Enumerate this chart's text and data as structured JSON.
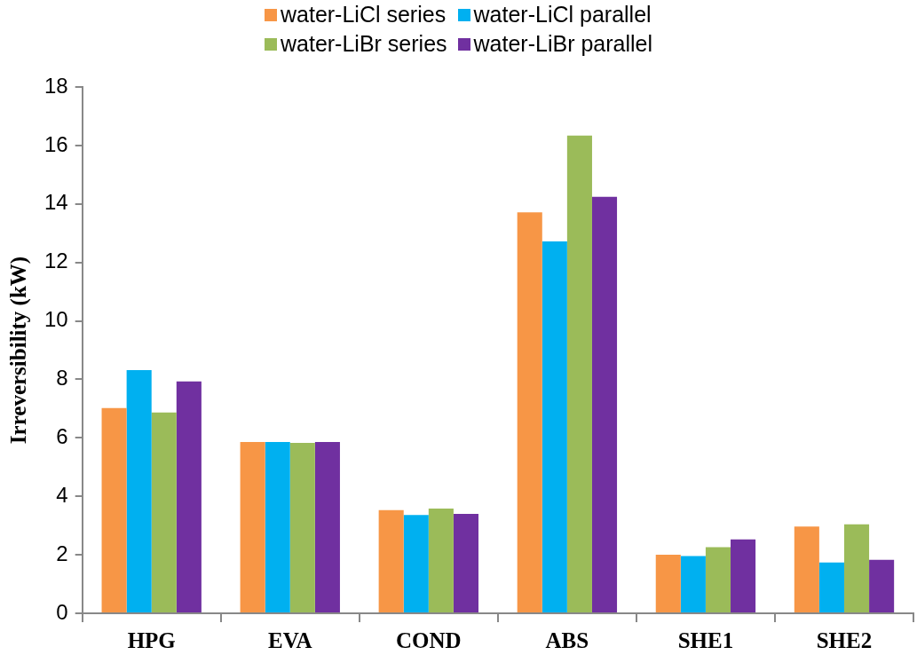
{
  "chart_data": {
    "type": "bar",
    "ylabel": "Irreversibility (kW)",
    "categories": [
      "HPG",
      "EVA",
      "COND",
      "ABS",
      "SHE1",
      "SHE2"
    ],
    "series": [
      {
        "name": "water-LiCl series",
        "color": "#f79646",
        "values": [
          7.02,
          5.86,
          3.53,
          13.71,
          2.0,
          2.97
        ]
      },
      {
        "name": "water-LiCl parallel",
        "color": "#00b0f0",
        "values": [
          8.32,
          5.86,
          3.36,
          12.72,
          1.96,
          1.74
        ]
      },
      {
        "name": "water-LiBr series",
        "color": "#9bbb59",
        "values": [
          6.87,
          5.83,
          3.58,
          16.34,
          2.26,
          3.04
        ]
      },
      {
        "name": "water-LiBr parallel",
        "color": "#7030a0",
        "values": [
          7.93,
          5.86,
          3.4,
          14.24,
          2.53,
          1.83
        ]
      }
    ],
    "ylim": [
      0,
      18
    ],
    "yticks": [
      0,
      2,
      4,
      6,
      8,
      10,
      12,
      14,
      16,
      18
    ],
    "grid": false,
    "legend": "top"
  }
}
